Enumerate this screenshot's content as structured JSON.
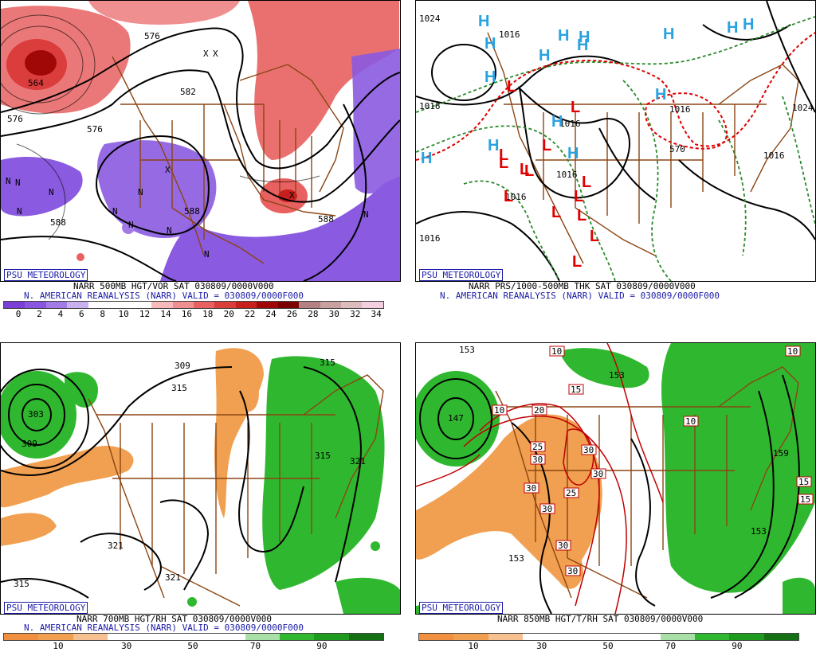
{
  "panels": {
    "p500": {
      "badge": "PSU METEOROLOGY",
      "line1": "NARR 500MB HGT/VOR SAT 030809/0000V000",
      "line2": "N. AMERICAN REANALYSIS (NARR) VALID = 030809/0000F000",
      "scale_colors": [
        "#7b3fd8",
        "#8a55e0",
        "#a37be6",
        "#c9b1f0",
        "#ffffff",
        "#ffffff",
        "#ffffff",
        "#f7b9b9",
        "#f08f8f",
        "#e86060",
        "#db3c3c",
        "#c81e1e",
        "#a00808",
        "#7d0000",
        "#b48282",
        "#c8a0a0",
        "#dcbcbc",
        "#f4cfe0"
      ],
      "scale_ticks": [
        "0",
        "2",
        "4",
        "6",
        "8",
        "10",
        "12",
        "14",
        "16",
        "18",
        "20",
        "22",
        "24",
        "26",
        "28",
        "30",
        "32",
        "34"
      ],
      "contour_labels": [
        "576",
        "576",
        "564",
        "576",
        "582",
        "588",
        "588",
        "588"
      ],
      "vort_marks": [
        "N",
        "N",
        "N",
        "N",
        "N",
        "N",
        "N",
        "N",
        "N",
        "N",
        "X",
        "X",
        "X",
        "X"
      ]
    },
    "p1000": {
      "badge": "PSU METEOROLOGY",
      "line1": "NARR PRS/1000-500MB THK SAT 030809/0000V000",
      "line2": "N. AMERICAN REANALYSIS (NARR) VALID = 030809/0000F000",
      "high_symbol": "H",
      "low_symbol": "L",
      "isobar_labels": [
        "1024",
        "1016",
        "1016",
        "1016",
        "1024",
        "1016",
        "1016",
        "1016",
        "1016",
        "1016",
        "570"
      ]
    },
    "p700": {
      "badge": "PSU METEOROLOGY",
      "line1": "NARR 700MB HGT/RH SAT 030809/0000V000",
      "line2": "N. AMERICAN REANALYSIS (NARR) VALID = 030809/0000F000",
      "scale_ticks": [
        "10",
        "30",
        "50",
        "70",
        "90"
      ],
      "contour_labels": [
        "309",
        "315",
        "315",
        "303",
        "309",
        "315",
        "321",
        "321",
        "321",
        "315"
      ]
    },
    "p850": {
      "badge": "PSU METEOROLOGY",
      "line1": "NARR 850MB HGT/T/RH SAT 030809/0000V000",
      "line2": "",
      "scale_ticks": [
        "10",
        "30",
        "50",
        "70",
        "90"
      ],
      "height_labels": [
        "153",
        "153",
        "147",
        "159",
        "153",
        "153"
      ],
      "temp_labels": [
        "10",
        "15",
        "10",
        "10",
        "20",
        "10",
        "25",
        "30",
        "30",
        "30",
        "25",
        "30",
        "30",
        "30",
        "30",
        "15",
        "15"
      ]
    }
  },
  "colors": {
    "vort_low": "#8a5ae0",
    "vort_high": "#e45050",
    "rh_dry": "#f0a050",
    "rh_moist": "#2fb82f",
    "borders": "#8b4513",
    "high_blue": "#2aa2e0",
    "low_red": "#e00000",
    "title_blue": "#1a1aa6"
  }
}
